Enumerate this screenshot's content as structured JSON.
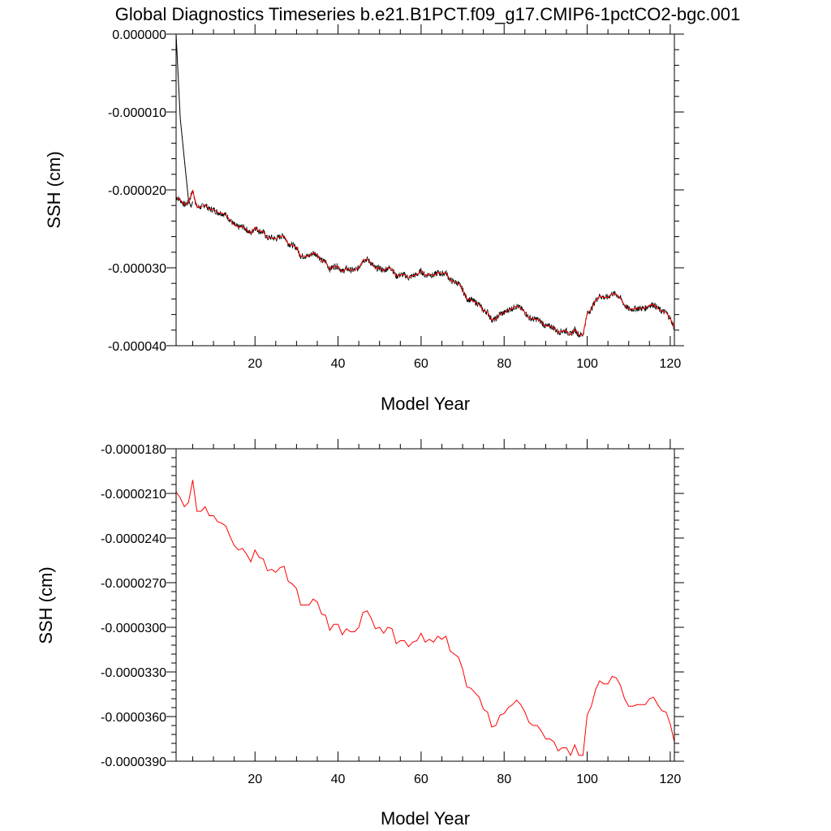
{
  "title": "Global Diagnostics Timeseries b.e21.B1PCT.f09_g17.CMIP6-1pctCO2-bgc.001",
  "colors": {
    "monthly_line": "#000000",
    "annual_line": "#ff0000",
    "axes": "#000000",
    "background": "#ffffff"
  },
  "chart_data": [
    {
      "type": "line",
      "xlabel": "Model Year",
      "ylabel": "SSH (cm)",
      "xlim": [
        1,
        121
      ],
      "ylim": [
        -4e-05,
        0.0
      ],
      "xticks": [
        20,
        40,
        60,
        80,
        100,
        120
      ],
      "xtick_labels": [
        "20",
        "40",
        "60",
        "80",
        "100",
        "120"
      ],
      "yticks": [
        0.0,
        -1e-05,
        -2e-05,
        -3e-05,
        -4e-05
      ],
      "ytick_labels": [
        "0.000000",
        "-0.000010",
        "-0.000020",
        "-0.000030",
        "-0.000040"
      ],
      "grid": false,
      "series": [
        {
          "id": "monthly",
          "color": "#000000",
          "kind": "monthly",
          "x": [
            1,
            1.5,
            2,
            3,
            4,
            4.6,
            5
          ],
          "y": [
            0.0,
            -5.5e-06,
            -1.08e-05,
            -1.61e-05,
            -2.13e-05,
            -2.22e-05,
            -2.15e-05
          ]
        },
        {
          "id": "annual",
          "color": "#ff0000",
          "kind": "annual",
          "x": [
            1,
            2,
            3,
            4,
            5,
            6,
            7,
            8,
            9,
            10,
            11,
            12,
            13,
            14,
            15,
            16,
            17,
            18,
            19,
            20,
            21,
            22,
            23,
            24,
            25,
            26,
            27,
            28,
            29,
            30,
            31,
            32,
            33,
            34,
            35,
            36,
            37,
            38,
            39,
            40,
            41,
            42,
            43,
            44,
            45,
            46,
            47,
            48,
            49,
            50,
            51,
            52,
            53,
            54,
            55,
            56,
            57,
            58,
            59,
            60,
            61,
            62,
            63,
            64,
            65,
            66,
            67,
            68,
            69,
            70,
            71,
            72,
            73,
            74,
            75,
            76,
            77,
            78,
            79,
            80,
            81,
            82,
            83,
            84,
            85,
            86,
            87,
            88,
            89,
            90,
            91,
            92,
            93,
            94,
            95,
            96,
            97,
            98,
            99,
            100,
            101,
            102,
            103,
            104,
            105,
            106,
            107,
            108,
            109,
            110,
            111,
            112,
            113,
            114,
            115,
            116,
            117,
            118,
            119,
            120,
            121
          ],
          "y": [
            -2.09e-05,
            -2.13e-05,
            -2.19e-05,
            -2.16e-05,
            -2.01e-05,
            -2.22e-05,
            -2.22e-05,
            -2.19e-05,
            -2.25e-05,
            -2.25e-05,
            -2.29e-05,
            -2.3e-05,
            -2.32e-05,
            -2.39e-05,
            -2.45e-05,
            -2.48e-05,
            -2.47e-05,
            -2.51e-05,
            -2.56e-05,
            -2.48e-05,
            -2.53e-05,
            -2.54e-05,
            -2.62e-05,
            -2.61e-05,
            -2.63e-05,
            -2.6e-05,
            -2.59e-05,
            -2.69e-05,
            -2.71e-05,
            -2.74e-05,
            -2.85e-05,
            -2.85e-05,
            -2.85e-05,
            -2.81e-05,
            -2.83e-05,
            -2.91e-05,
            -2.92e-05,
            -3.02e-05,
            -2.98e-05,
            -2.98e-05,
            -3.05e-05,
            -3.01e-05,
            -3.03e-05,
            -3.03e-05,
            -3e-05,
            -2.9e-05,
            -2.89e-05,
            -2.94e-05,
            -3.01e-05,
            -3e-05,
            -3.04e-05,
            -3e-05,
            -3.01e-05,
            -3.11e-05,
            -3.09e-05,
            -3.09e-05,
            -3.13e-05,
            -3.1e-05,
            -3.09e-05,
            -3.04e-05,
            -3.1e-05,
            -3.08e-05,
            -3.1e-05,
            -3.06e-05,
            -3.08e-05,
            -3.06e-05,
            -3.16e-05,
            -3.18e-05,
            -3.2e-05,
            -3.28e-05,
            -3.4e-05,
            -3.41e-05,
            -3.44e-05,
            -3.47e-05,
            -3.55e-05,
            -3.57e-05,
            -3.67e-05,
            -3.66e-05,
            -3.59e-05,
            -3.58e-05,
            -3.54e-05,
            -3.52e-05,
            -3.49e-05,
            -3.52e-05,
            -3.57e-05,
            -3.64e-05,
            -3.66e-05,
            -3.66e-05,
            -3.7e-05,
            -3.75e-05,
            -3.75e-05,
            -3.77e-05,
            -3.83e-05,
            -3.81e-05,
            -3.81e-05,
            -3.86e-05,
            -3.79e-05,
            -3.86e-05,
            -3.86e-05,
            -3.59e-05,
            -3.53e-05,
            -3.42e-05,
            -3.36e-05,
            -3.38e-05,
            -3.38e-05,
            -3.33e-05,
            -3.34e-05,
            -3.39e-05,
            -3.48e-05,
            -3.53e-05,
            -3.53e-05,
            -3.52e-05,
            -3.52e-05,
            -3.52e-05,
            -3.48e-05,
            -3.47e-05,
            -3.52e-05,
            -3.56e-05,
            -3.57e-05,
            -3.65e-05,
            -3.77e-05
          ]
        }
      ]
    },
    {
      "type": "line",
      "xlabel": "Model Year",
      "ylabel": "SSH (cm)",
      "xlim": [
        1,
        121
      ],
      "ylim": [
        -3.9e-05,
        -1.8e-05
      ],
      "xticks": [
        20,
        40,
        60,
        80,
        100,
        120
      ],
      "xtick_labels": [
        "20",
        "40",
        "60",
        "80",
        "100",
        "120"
      ],
      "yticks": [
        -1.8e-05,
        -2.1e-05,
        -2.4e-05,
        -2.7e-05,
        -3e-05,
        -3.3e-05,
        -3.6e-05,
        -3.9e-05
      ],
      "ytick_labels": [
        "-0.0000180",
        "-0.0000210",
        "-0.0000240",
        "-0.0000270",
        "-0.0000300",
        "-0.0000330",
        "-0.0000360",
        "-0.0000390"
      ],
      "grid": false,
      "series": [
        {
          "id": "annual",
          "color": "#ff0000",
          "kind": "annual",
          "x": [
            1,
            2,
            3,
            4,
            5,
            6,
            7,
            8,
            9,
            10,
            11,
            12,
            13,
            14,
            15,
            16,
            17,
            18,
            19,
            20,
            21,
            22,
            23,
            24,
            25,
            26,
            27,
            28,
            29,
            30,
            31,
            32,
            33,
            34,
            35,
            36,
            37,
            38,
            39,
            40,
            41,
            42,
            43,
            44,
            45,
            46,
            47,
            48,
            49,
            50,
            51,
            52,
            53,
            54,
            55,
            56,
            57,
            58,
            59,
            60,
            61,
            62,
            63,
            64,
            65,
            66,
            67,
            68,
            69,
            70,
            71,
            72,
            73,
            74,
            75,
            76,
            77,
            78,
            79,
            80,
            81,
            82,
            83,
            84,
            85,
            86,
            87,
            88,
            89,
            90,
            91,
            92,
            93,
            94,
            95,
            96,
            97,
            98,
            99,
            100,
            101,
            102,
            103,
            104,
            105,
            106,
            107,
            108,
            109,
            110,
            111,
            112,
            113,
            114,
            115,
            116,
            117,
            118,
            119,
            120,
            121
          ],
          "y": [
            -2.09e-05,
            -2.13e-05,
            -2.19e-05,
            -2.16e-05,
            -2.01e-05,
            -2.22e-05,
            -2.22e-05,
            -2.19e-05,
            -2.25e-05,
            -2.25e-05,
            -2.29e-05,
            -2.3e-05,
            -2.32e-05,
            -2.39e-05,
            -2.45e-05,
            -2.48e-05,
            -2.47e-05,
            -2.51e-05,
            -2.56e-05,
            -2.48e-05,
            -2.53e-05,
            -2.54e-05,
            -2.62e-05,
            -2.61e-05,
            -2.63e-05,
            -2.6e-05,
            -2.59e-05,
            -2.69e-05,
            -2.71e-05,
            -2.74e-05,
            -2.85e-05,
            -2.85e-05,
            -2.85e-05,
            -2.81e-05,
            -2.83e-05,
            -2.91e-05,
            -2.92e-05,
            -3.02e-05,
            -2.98e-05,
            -2.98e-05,
            -3.05e-05,
            -3.01e-05,
            -3.03e-05,
            -3.03e-05,
            -3e-05,
            -2.9e-05,
            -2.89e-05,
            -2.94e-05,
            -3.01e-05,
            -3e-05,
            -3.04e-05,
            -3e-05,
            -3.01e-05,
            -3.11e-05,
            -3.09e-05,
            -3.09e-05,
            -3.13e-05,
            -3.1e-05,
            -3.09e-05,
            -3.04e-05,
            -3.1e-05,
            -3.08e-05,
            -3.1e-05,
            -3.06e-05,
            -3.08e-05,
            -3.06e-05,
            -3.16e-05,
            -3.18e-05,
            -3.2e-05,
            -3.28e-05,
            -3.4e-05,
            -3.41e-05,
            -3.44e-05,
            -3.47e-05,
            -3.55e-05,
            -3.57e-05,
            -3.67e-05,
            -3.66e-05,
            -3.59e-05,
            -3.58e-05,
            -3.54e-05,
            -3.52e-05,
            -3.49e-05,
            -3.52e-05,
            -3.57e-05,
            -3.64e-05,
            -3.66e-05,
            -3.66e-05,
            -3.7e-05,
            -3.75e-05,
            -3.75e-05,
            -3.77e-05,
            -3.83e-05,
            -3.81e-05,
            -3.81e-05,
            -3.86e-05,
            -3.79e-05,
            -3.86e-05,
            -3.86e-05,
            -3.59e-05,
            -3.53e-05,
            -3.42e-05,
            -3.36e-05,
            -3.38e-05,
            -3.38e-05,
            -3.33e-05,
            -3.34e-05,
            -3.39e-05,
            -3.48e-05,
            -3.53e-05,
            -3.53e-05,
            -3.52e-05,
            -3.52e-05,
            -3.52e-05,
            -3.48e-05,
            -3.47e-05,
            -3.52e-05,
            -3.56e-05,
            -3.57e-05,
            -3.65e-05,
            -3.77e-05
          ]
        }
      ]
    }
  ]
}
